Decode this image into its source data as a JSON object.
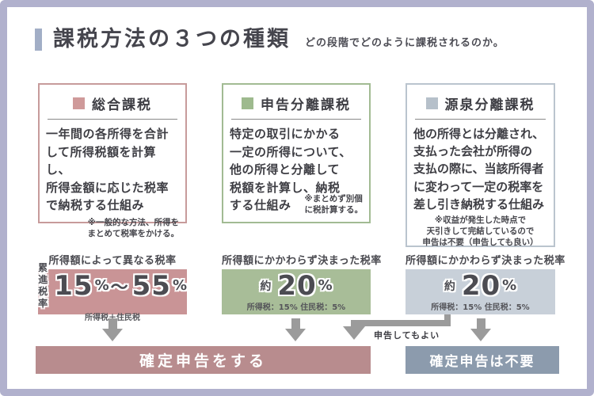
{
  "header": {
    "title": "課税方法の３つの種類",
    "subtitle": "どの段階でどのように課税されるのか。"
  },
  "cards": [
    {
      "title": "総合課税",
      "accent_color": "#cf9a9a",
      "border_color": "#c79b9b",
      "body_lines": [
        "一年間の各所得を合計",
        "して所得税額を計算し、",
        "所得金額に応じた税率",
        "で納税する仕組み"
      ],
      "note_lines": [
        "※一般的な方法、所得を",
        "まとめて税率をかける。"
      ]
    },
    {
      "title": "申告分離課税",
      "accent_color": "#9eba8e",
      "border_color": "#a2bb93",
      "body_lines": [
        "特定の取引にかかる",
        "一定の所得について、",
        "他の所得と分離して",
        "税額を計算し、納税",
        "する仕組み"
      ],
      "note_lines": [
        "※まとめず別個",
        "に税計算する。"
      ]
    },
    {
      "title": "源泉分離課税",
      "accent_color": "#b6c0ca",
      "border_color": "#bac4ce",
      "body_lines": [
        "他の所得とは分離され、",
        "支払った会社が所得の",
        "支払の際に、当該所得者",
        "に変わって一定の税率を",
        "差し引き納税する仕組み"
      ],
      "note_lines": [
        "※収益が発生した時点で",
        "天引きして完結しているので",
        "申告は不要（申告しても良い）"
      ]
    }
  ],
  "rates": [
    {
      "label": "所得額によって異なる税率",
      "badge_lines": [
        "累進",
        "税率"
      ],
      "value_low": "15",
      "pct1": "%",
      "tilde": "～",
      "value_high": "55",
      "pct2": "%",
      "sub": "所得税＋住民税",
      "bg_color": "#c99496"
    },
    {
      "label": "所得額にかかわらず決まった税率",
      "prefix": "約",
      "value": "20",
      "pct": "%",
      "sub": "所得税：15% 住民税：5%",
      "bg_color": "#a8bd98"
    },
    {
      "label": "所得額にかかわらず決まった税率",
      "prefix": "約",
      "value": "20",
      "pct": "%",
      "sub": "所得税：15% 住民税：5%",
      "bg_color": "#c8d0d9"
    }
  ],
  "flow": {
    "branch_label": "申告してもよい",
    "file_box_label": "確定申告をする",
    "no_file_box_label": "確定申告は不要",
    "file_box_color": "#b88c8e",
    "no_file_box_color": "#8c9bad",
    "arrow_color": "#9b9b9b"
  },
  "frame": {
    "border_color": "#b1b1cd",
    "accent_bar_color": "#a2aec6"
  }
}
